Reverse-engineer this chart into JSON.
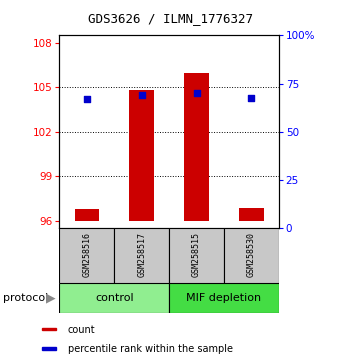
{
  "title": "GDS3626 / ILMN_1776327",
  "samples": [
    "GSM258516",
    "GSM258517",
    "GSM258515",
    "GSM258530"
  ],
  "groups": [
    {
      "name": "control",
      "color": "#90EE90",
      "samples": [
        0,
        1
      ]
    },
    {
      "name": "MIF depletion",
      "color": "#44DD44",
      "samples": [
        2,
        3
      ]
    }
  ],
  "bar_color": "#CC0000",
  "dot_color": "#0000CC",
  "ylim_left": [
    95.5,
    108.5
  ],
  "ylim_right": [
    0,
    100
  ],
  "yticks_left": [
    96,
    99,
    102,
    105,
    108
  ],
  "yticks_right": [
    0,
    25,
    50,
    75,
    100
  ],
  "ytick_labels_right": [
    "0",
    "25",
    "50",
    "75",
    "100%"
  ],
  "bar_bottoms": [
    96,
    96,
    96,
    96
  ],
  "bar_tops": [
    96.8,
    104.8,
    106.0,
    96.9
  ],
  "dot_values": [
    104.2,
    104.5,
    104.6,
    104.3
  ],
  "grid_lines": [
    99,
    102,
    105
  ],
  "legend_items": [
    {
      "color": "#CC0000",
      "label": "count"
    },
    {
      "color": "#0000CC",
      "label": "percentile rank within the sample"
    }
  ],
  "sample_box_color": "#C8C8C8",
  "title_fontsize": 9,
  "tick_fontsize": 7.5,
  "sample_fontsize": 6,
  "group_fontsize": 8,
  "legend_fontsize": 7
}
